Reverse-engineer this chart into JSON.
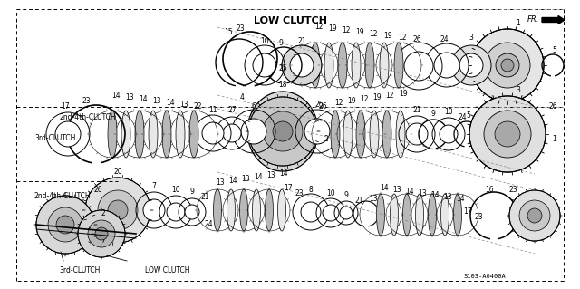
{
  "bg_color": "#ffffff",
  "diagram_color": "#000000",
  "title_low_clutch": "LOW CLUTCH",
  "label_2nd4th": "2nd-4th-CLUTCH",
  "label_3rd": "3rd-CLUTCH",
  "label_2nd4th2": "2nd-4th-CLUTCH",
  "label_3rd2": "3rd-CLUTCH",
  "label_low2": "LOW CLUTCH",
  "label_fr": "FR.",
  "part_code": "S103-A0400A"
}
